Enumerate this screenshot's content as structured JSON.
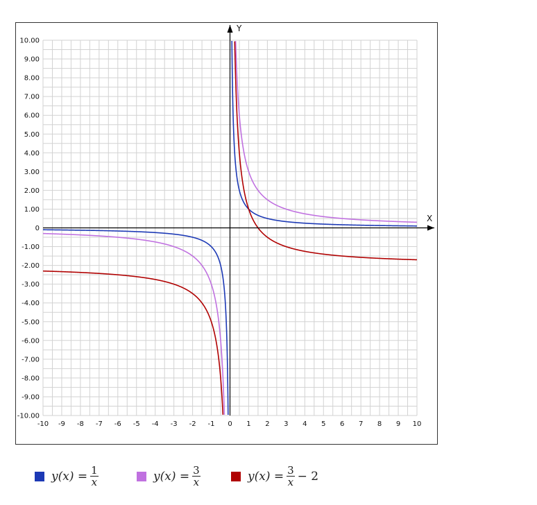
{
  "chart_data": {
    "type": "line",
    "title": "",
    "xlabel": "X",
    "ylabel": "Y",
    "xlim": [
      -10,
      10
    ],
    "ylim": [
      -10,
      10
    ],
    "grid": true,
    "legend_position": "bottom",
    "x_ticks": [
      "-10",
      "-9",
      "-8",
      "-7",
      "-6",
      "-5",
      "-4",
      "-3",
      "-2",
      "-1",
      "0",
      "1",
      "2",
      "3",
      "4",
      "5",
      "6",
      "7",
      "8",
      "9",
      "10"
    ],
    "y_ticks": [
      "-10.00",
      "-9.00",
      "-8.00",
      "-7.00",
      "-6.00",
      "-5.00",
      "-4.00",
      "-3.00",
      "-2.00",
      "-1.00",
      "0",
      "1.00",
      "2.00",
      "3.00",
      "4.00",
      "5.00",
      "6.00",
      "7.00",
      "8.00",
      "9.00",
      "10.00"
    ],
    "series": [
      {
        "name": "y(x) = 1/x",
        "function": "1/x",
        "color": "#1c39b5",
        "k": 1,
        "c": 0
      },
      {
        "name": "y(x) = 3/x",
        "function": "3/x",
        "color": "#c071e0",
        "k": 3,
        "c": 0
      },
      {
        "name": "y(x) = 3/x - 2",
        "function": "3/x - 2",
        "color": "#b00000",
        "k": 3,
        "c": -2
      }
    ]
  },
  "legend": [
    {
      "lhs": "y(x) =",
      "num": "1",
      "den": "x",
      "tail": "",
      "color": "#1c39b5"
    },
    {
      "lhs": "y(x) =",
      "num": "3",
      "den": "x",
      "tail": "",
      "color": "#c071e0"
    },
    {
      "lhs": "y(x) =",
      "num": "3",
      "den": "x",
      "tail": "− 2",
      "color": "#b00000"
    }
  ]
}
